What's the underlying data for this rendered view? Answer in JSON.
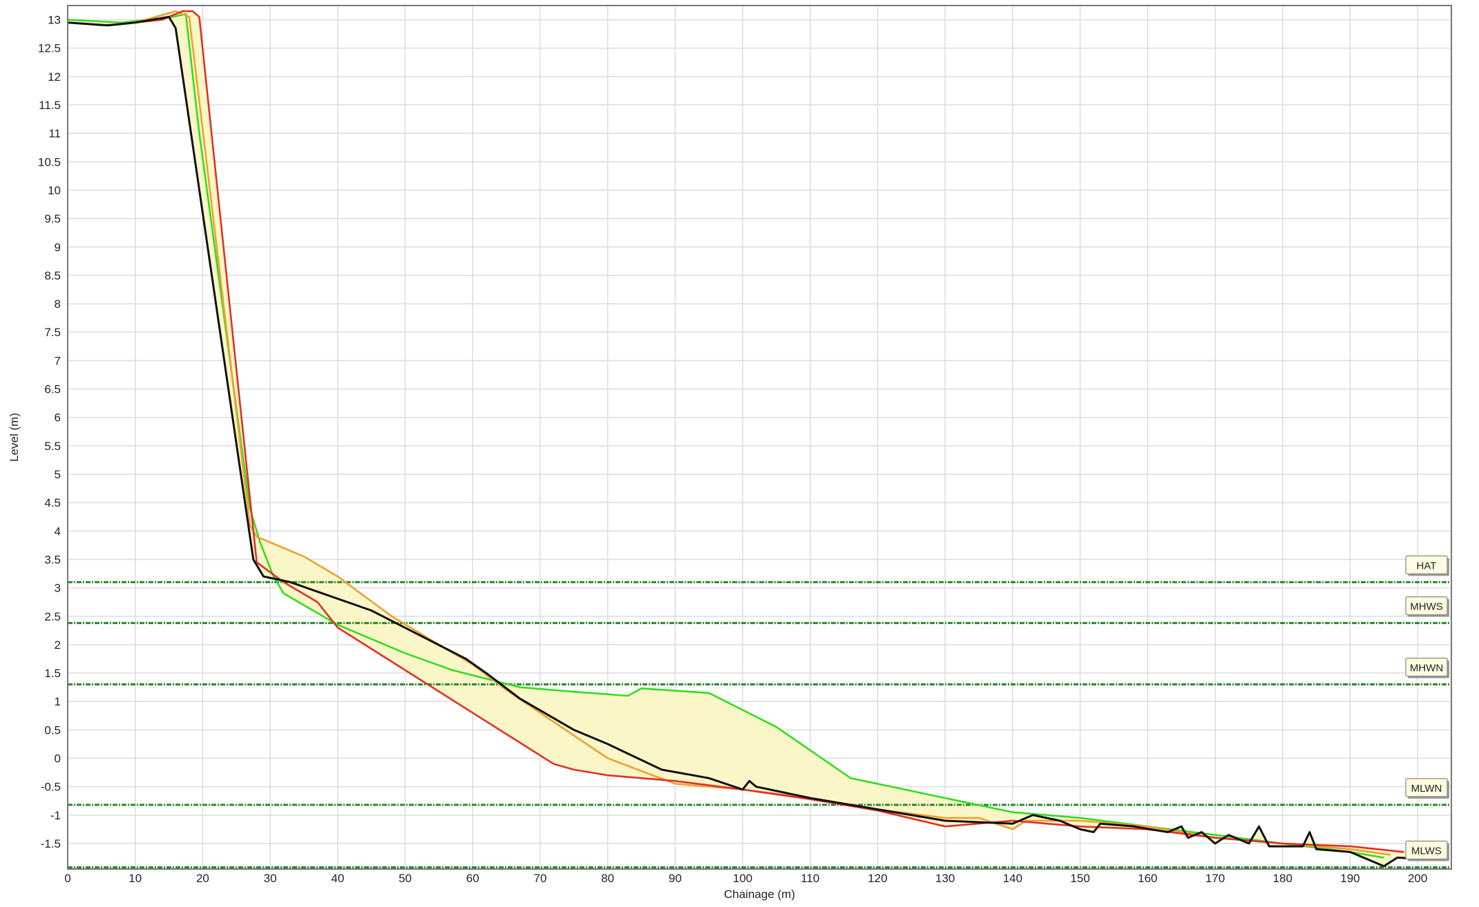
{
  "chart_data": {
    "type": "line",
    "xlabel": "Chainage (m)",
    "ylabel": "Level (m)",
    "xlim": [
      0,
      205
    ],
    "ylim": [
      -1.95,
      13.25
    ],
    "xticks": [
      0,
      10,
      20,
      30,
      40,
      50,
      60,
      70,
      80,
      90,
      100,
      110,
      120,
      130,
      140,
      150,
      160,
      170,
      180,
      190,
      200
    ],
    "yticks": [
      -1.5,
      -1,
      -0.5,
      0,
      0.5,
      1,
      1.5,
      2,
      2.5,
      3,
      3.5,
      4,
      4.5,
      5,
      5.5,
      6,
      6.5,
      7,
      7.5,
      8,
      8.5,
      9,
      9.5,
      10,
      10.5,
      11,
      11.5,
      12,
      12.5,
      13
    ],
    "grid": true,
    "colors": {
      "green": "#33dd22",
      "orange": "#f0a030",
      "red": "#e03028",
      "black": "#111111",
      "tide_line": "#2a8a2a",
      "fill": "#fbf6c8"
    },
    "tide_levels": [
      {
        "name": "HAT",
        "value": 3.1
      },
      {
        "name": "MHWS",
        "value": 2.38
      },
      {
        "name": "MHWN",
        "value": 1.3
      },
      {
        "name": "MLWN",
        "value": -0.82
      },
      {
        "name": "MLWS",
        "value": -1.92
      }
    ],
    "series": [
      {
        "color_key": "green",
        "x": [
          0,
          8,
          15.5,
          17.5,
          19.5,
          27,
          28.5,
          30.5,
          32,
          40,
          50,
          57,
          67,
          75,
          83,
          85,
          95,
          105,
          116,
          130,
          140,
          150,
          160,
          170,
          180,
          190,
          195
        ],
        "y": [
          13.0,
          12.95,
          13.05,
          13.1,
          11,
          4.4,
          3.8,
          3.2,
          2.9,
          2.35,
          1.85,
          1.55,
          1.25,
          1.17,
          1.1,
          1.23,
          1.15,
          0.55,
          -0.35,
          -0.7,
          -0.95,
          -1.05,
          -1.2,
          -1.35,
          -1.5,
          -1.65,
          -1.75
        ]
      },
      {
        "color_key": "orange",
        "x": [
          0,
          5,
          10,
          16,
          18,
          27,
          28,
          35,
          40,
          48,
          55,
          60,
          65,
          70,
          80,
          90,
          100,
          110,
          120,
          130,
          135,
          140,
          142,
          150,
          160,
          170,
          180,
          190,
          196
        ],
        "y": [
          12.95,
          12.9,
          12.95,
          13.15,
          13.05,
          4.1,
          3.9,
          3.55,
          3.2,
          2.5,
          2.0,
          1.65,
          1.2,
          0.8,
          0.0,
          -0.45,
          -0.55,
          -0.7,
          -0.9,
          -1.05,
          -1.05,
          -1.25,
          -1.1,
          -1.1,
          -1.2,
          -1.4,
          -1.5,
          -1.6,
          -1.7
        ]
      },
      {
        "color_key": "red",
        "x": [
          0,
          6,
          14,
          17,
          18.5,
          19.5,
          28,
          32,
          37,
          40,
          50,
          60,
          72,
          75,
          80,
          90,
          100,
          110,
          120,
          130,
          140,
          150,
          160,
          170,
          180,
          190,
          198
        ],
        "y": [
          12.95,
          12.9,
          13.0,
          13.15,
          13.15,
          13.05,
          3.45,
          3.1,
          2.75,
          2.3,
          1.55,
          0.8,
          -0.1,
          -0.2,
          -0.3,
          -0.4,
          -0.55,
          -0.72,
          -0.92,
          -1.2,
          -1.1,
          -1.2,
          -1.25,
          -1.4,
          -1.5,
          -1.55,
          -1.65
        ]
      },
      {
        "color_key": "black",
        "x": [
          0,
          6,
          10,
          15,
          16,
          27.5,
          29,
          33,
          45,
          59,
          62,
          67,
          75,
          80,
          88,
          95,
          100,
          101,
          102,
          110,
          120,
          130,
          140,
          143,
          147,
          150,
          152,
          153,
          158,
          163,
          165,
          166,
          168,
          170,
          172,
          175,
          176.5,
          178,
          183,
          184,
          185,
          190,
          195,
          197,
          202
        ],
        "y": [
          12.95,
          12.9,
          12.95,
          13.05,
          12.85,
          3.5,
          3.2,
          3.1,
          2.6,
          1.75,
          1.5,
          1.05,
          0.5,
          0.25,
          -0.2,
          -0.35,
          -0.55,
          -0.4,
          -0.5,
          -0.7,
          -0.9,
          -1.1,
          -1.15,
          -1.0,
          -1.1,
          -1.25,
          -1.3,
          -1.15,
          -1.2,
          -1.3,
          -1.2,
          -1.4,
          -1.3,
          -1.5,
          -1.35,
          -1.5,
          -1.2,
          -1.55,
          -1.55,
          -1.3,
          -1.6,
          -1.65,
          -1.9,
          -1.75,
          -1.78
        ]
      }
    ]
  }
}
